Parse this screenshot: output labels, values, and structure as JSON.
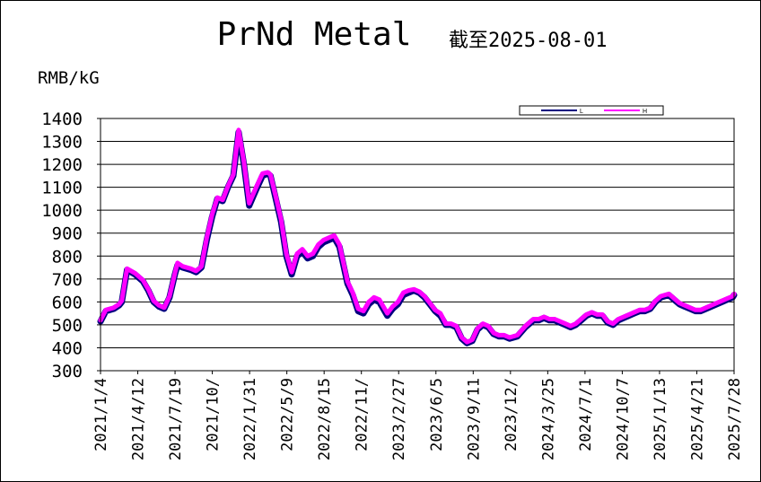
{
  "chart_data": {
    "type": "line",
    "title": "PrNd Metal",
    "subtitle": "截至2025-08-01",
    "ylabel": "RMB/kG",
    "ylim": [
      300,
      1400
    ],
    "yticks": [
      300,
      400,
      500,
      600,
      700,
      800,
      900,
      1000,
      1100,
      1200,
      1300,
      1400
    ],
    "grid": true,
    "legend_position": "top-right",
    "x_start": "2021/1/4",
    "x_end": "2025/8/1",
    "x_tick_labels": [
      "2021/1/4",
      "2021/4/12",
      "2021/7/19",
      "2021/10/",
      "2022/1/31",
      "2022/5/9",
      "2022/8/15",
      "2022/11/",
      "2023/2/27",
      "2023/6/5",
      "2023/9/11",
      "2023/12/",
      "2024/3/25",
      "2024/7/1",
      "2024/10/7",
      "2025/1/13",
      "2025/4/21",
      "2025/7/28"
    ],
    "colors": {
      "L": "#000080",
      "H": "#ff00ff"
    },
    "series": [
      {
        "name": "L",
        "x": [
          "2021/1/4",
          "2021/1/18",
          "2021/2/8",
          "2021/2/22",
          "2021/3/1",
          "2021/3/15",
          "2021/4/5",
          "2021/4/26",
          "2021/5/10",
          "2021/5/24",
          "2021/6/7",
          "2021/6/21",
          "2021/7/5",
          "2021/7/19",
          "2021/7/26",
          "2021/8/9",
          "2021/8/30",
          "2021/9/13",
          "2021/9/27",
          "2021/10/11",
          "2021/10/25",
          "2021/11/8",
          "2021/11/22",
          "2021/12/6",
          "2021/12/20",
          "2022/1/3",
          "2022/1/17",
          "2022/1/31",
          "2022/2/21",
          "2022/3/7",
          "2022/3/21",
          "2022/3/28",
          "2022/4/11",
          "2022/4/25",
          "2022/5/9",
          "2022/5/23",
          "2022/6/6",
          "2022/6/20",
          "2022/7/4",
          "2022/7/18",
          "2022/8/1",
          "2022/8/15",
          "2022/8/29",
          "2022/9/12",
          "2022/9/26",
          "2022/10/17",
          "2022/10/31",
          "2022/11/14",
          "2022/11/28",
          "2022/12/12",
          "2022/12/26",
          "2023/1/9",
          "2023/1/30",
          "2023/2/13",
          "2023/2/27",
          "2023/3/13",
          "2023/3/27",
          "2023/4/10",
          "2023/4/24",
          "2023/5/8",
          "2023/5/22",
          "2023/6/5",
          "2023/6/19",
          "2023/7/3",
          "2023/7/17",
          "2023/7/31",
          "2023/8/14",
          "2023/8/28",
          "2023/9/11",
          "2023/9/25",
          "2023/10/9",
          "2023/10/23",
          "2023/11/6",
          "2023/11/20",
          "2023/12/4",
          "2023/12/18",
          "2024/1/8",
          "2024/1/29",
          "2024/2/19",
          "2024/3/4",
          "2024/3/18",
          "2024/4/1",
          "2024/4/15",
          "2024/4/29",
          "2024/5/13",
          "2024/5/27",
          "2024/6/10",
          "2024/6/24",
          "2024/7/8",
          "2024/7/22",
          "2024/8/5",
          "2024/8/19",
          "2024/9/2",
          "2024/9/16",
          "2024/9/30",
          "2024/10/14",
          "2024/10/28",
          "2024/11/11",
          "2024/11/25",
          "2024/12/9",
          "2024/12/23",
          "2025/1/6",
          "2025/1/20",
          "2025/2/10",
          "2025/2/24",
          "2025/3/10",
          "2025/3/24",
          "2025/4/7",
          "2025/4/21",
          "2025/5/5",
          "2025/5/19",
          "2025/6/2",
          "2025/6/16",
          "2025/6/30",
          "2025/7/14",
          "2025/7/28",
          "2025/8/1"
        ],
        "values": [
          515,
          560,
          570,
          585,
          600,
          740,
          720,
          690,
          650,
          600,
          580,
          570,
          620,
          720,
          760,
          750,
          740,
          730,
          750,
          870,
          970,
          1050,
          1040,
          1100,
          1150,
          1340,
          1200,
          1020,
          1100,
          1150,
          1160,
          1150,
          1050,
          950,
          800,
          720,
          800,
          820,
          790,
          800,
          840,
          860,
          870,
          880,
          840,
          680,
          630,
          560,
          550,
          590,
          610,
          600,
          540,
          570,
          590,
          630,
          640,
          650,
          640,
          620,
          590,
          560,
          540,
          500,
          500,
          490,
          440,
          420,
          430,
          480,
          500,
          490,
          460,
          450,
          450,
          440,
          450,
          490,
          520,
          520,
          530,
          520,
          520,
          510,
          500,
          490,
          500,
          520,
          540,
          550,
          540,
          540,
          510,
          500,
          520,
          530,
          540,
          550,
          560,
          560,
          570,
          600,
          620,
          630,
          610,
          590,
          580,
          570,
          560,
          560,
          570,
          580,
          590,
          600,
          610,
          620,
          630
        ]
      },
      {
        "name": "H",
        "x": [
          "2021/1/4",
          "2021/1/18",
          "2021/2/8",
          "2021/2/22",
          "2021/3/1",
          "2021/3/15",
          "2021/4/5",
          "2021/4/26",
          "2021/5/10",
          "2021/5/24",
          "2021/6/7",
          "2021/6/21",
          "2021/7/5",
          "2021/7/19",
          "2021/7/26",
          "2021/8/9",
          "2021/8/30",
          "2021/9/13",
          "2021/9/27",
          "2021/10/11",
          "2021/10/25",
          "2021/11/8",
          "2021/11/22",
          "2021/12/6",
          "2021/12/20",
          "2022/1/3",
          "2022/1/17",
          "2022/1/31",
          "2022/2/21",
          "2022/3/7",
          "2022/3/21",
          "2022/3/28",
          "2022/4/11",
          "2022/4/25",
          "2022/5/9",
          "2022/5/23",
          "2022/6/6",
          "2022/6/20",
          "2022/7/4",
          "2022/7/18",
          "2022/8/1",
          "2022/8/15",
          "2022/8/29",
          "2022/9/12",
          "2022/9/26",
          "2022/10/17",
          "2022/10/31",
          "2022/11/14",
          "2022/11/28",
          "2022/12/12",
          "2022/12/26",
          "2023/1/9",
          "2023/1/30",
          "2023/2/13",
          "2023/2/27",
          "2023/3/13",
          "2023/3/27",
          "2023/4/10",
          "2023/4/24",
          "2023/5/8",
          "2023/5/22",
          "2023/6/5",
          "2023/6/19",
          "2023/7/3",
          "2023/7/17",
          "2023/7/31",
          "2023/8/14",
          "2023/8/28",
          "2023/9/11",
          "2023/9/25",
          "2023/10/9",
          "2023/10/23",
          "2023/11/6",
          "2023/11/20",
          "2023/12/4",
          "2023/12/18",
          "2024/1/8",
          "2024/1/29",
          "2024/2/19",
          "2024/3/4",
          "2024/3/18",
          "2024/4/1",
          "2024/4/15",
          "2024/4/29",
          "2024/5/13",
          "2024/5/27",
          "2024/6/10",
          "2024/6/24",
          "2024/7/8",
          "2024/7/22",
          "2024/8/5",
          "2024/8/19",
          "2024/9/2",
          "2024/9/16",
          "2024/9/30",
          "2024/10/14",
          "2024/10/28",
          "2024/11/11",
          "2024/11/25",
          "2024/12/9",
          "2024/12/23",
          "2025/1/6",
          "2025/1/20",
          "2025/2/10",
          "2025/2/24",
          "2025/3/10",
          "2025/3/24",
          "2025/4/7",
          "2025/4/21",
          "2025/5/5",
          "2025/5/19",
          "2025/6/2",
          "2025/6/16",
          "2025/6/30",
          "2025/7/14",
          "2025/7/28",
          "2025/8/1"
        ],
        "values": [
          520,
          565,
          575,
          590,
          605,
          745,
          725,
          695,
          655,
          605,
          585,
          575,
          625,
          725,
          770,
          755,
          745,
          735,
          755,
          880,
          980,
          1055,
          1045,
          1105,
          1155,
          1350,
          1210,
          1030,
          1110,
          1160,
          1165,
          1155,
          1060,
          960,
          810,
          730,
          810,
          830,
          800,
          810,
          850,
          870,
          880,
          890,
          850,
          690,
          640,
          570,
          560,
          600,
          620,
          610,
          550,
          580,
          600,
          640,
          650,
          655,
          645,
          625,
          595,
          565,
          550,
          505,
          505,
          495,
          445,
          425,
          435,
          485,
          505,
          495,
          465,
          455,
          455,
          445,
          455,
          495,
          525,
          525,
          535,
          525,
          525,
          515,
          505,
          495,
          505,
          525,
          545,
          555,
          545,
          545,
          515,
          505,
          525,
          535,
          545,
          555,
          565,
          565,
          575,
          605,
          625,
          635,
          615,
          595,
          585,
          575,
          565,
          565,
          575,
          585,
          595,
          605,
          615,
          625,
          635
        ]
      }
    ]
  }
}
